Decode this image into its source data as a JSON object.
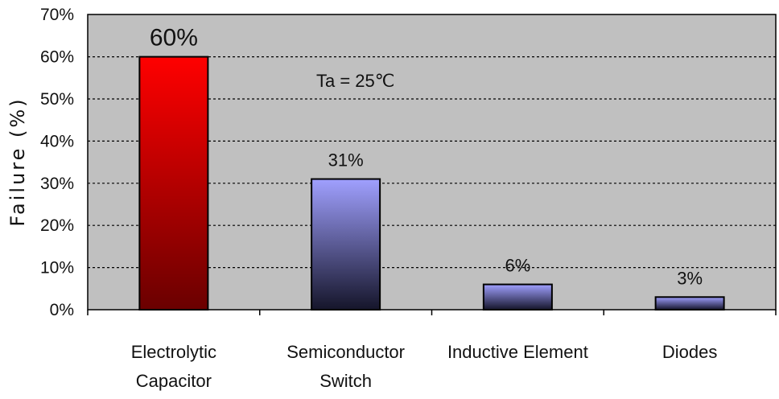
{
  "chart_data": {
    "type": "bar",
    "categories": [
      [
        "Electrolytic",
        "Capacitor"
      ],
      [
        "Semiconductor",
        "Switch"
      ],
      [
        "Inductive Element"
      ],
      [
        "Diodes"
      ]
    ],
    "values": [
      60,
      31,
      6,
      3
    ],
    "data_labels": [
      "60%",
      "31%",
      "6%",
      "3%"
    ],
    "ylabel": "Failure (%)",
    "annotation": "Ta = 25℃",
    "ylim": [
      0,
      70
    ],
    "yticks": [
      "0%",
      "10%",
      "20%",
      "30%",
      "40%",
      "50%",
      "60%",
      "70%"
    ],
    "grid": true,
    "legend": "none",
    "colors": {
      "plot_background": "#c0c0c0",
      "highlight_bar_top": "#ff0000",
      "highlight_bar_bottom": "#6a0000",
      "bar_top": "#a0a0ff",
      "bar_bottom": "#15152a"
    }
  }
}
